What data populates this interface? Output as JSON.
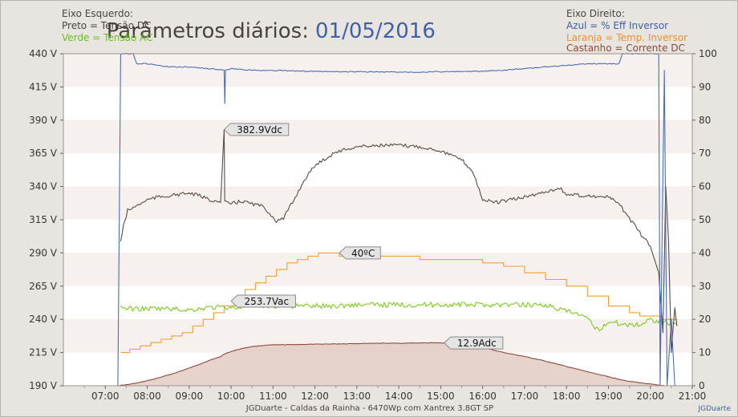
{
  "chart_data": {
    "type": "line",
    "title": {
      "prefix": "Parâmetros diários:",
      "date": "01/05/2016"
    },
    "legend_left": {
      "heading": "Eixo Esquerdo:",
      "black": "Preto = Tensão DC",
      "green": "Verde = Tensão AC"
    },
    "legend_right": {
      "heading": "Eixo Direito:",
      "blue": "Azul = % Eff Inversor",
      "orange": "Laranja = Temp. Inversor",
      "brown": "Castanho = Corrente DC"
    },
    "left_axis": {
      "range": [
        190,
        440
      ],
      "ticks": [
        "440 V",
        "415 V",
        "390 V",
        "365 V",
        "340 V",
        "315 V",
        "290 V",
        "265 V",
        "240 V",
        "215 V",
        "190 V"
      ]
    },
    "right_axis": {
      "range": [
        0,
        100
      ],
      "ticks": [
        "100",
        "90",
        "80",
        "70",
        "60",
        "50",
        "40",
        "30",
        "20",
        "10",
        "0"
      ]
    },
    "x_axis": {
      "range": [
        "06:00",
        "21:00"
      ],
      "ticks": [
        "07:00",
        "08:00",
        "09:00",
        "10:00",
        "11:00",
        "12:00",
        "13:00",
        "14:00",
        "15:00",
        "16:00",
        "17:00",
        "18:00",
        "19:00",
        "20:00",
        "21:00"
      ]
    },
    "grid": "horizontal bands",
    "annotations": [
      {
        "text": "382.9Vdc",
        "time": "09:50",
        "value": 382.9,
        "axis": "left"
      },
      {
        "text": "40ºC",
        "time": "12:35",
        "value": 40,
        "axis": "right"
      },
      {
        "text": "253.7Vac",
        "time": "10:00",
        "value": 253.7,
        "axis": "left"
      },
      {
        "text": "12.9Adc",
        "time": "15:05",
        "value": 12.9,
        "axis": "right"
      }
    ],
    "series": [
      {
        "name": "Tensão DC",
        "axis": "left",
        "color": "#5a4a42",
        "points": [
          [
            "07:22",
            299
          ],
          [
            "07:26",
            310
          ],
          [
            "07:32",
            322
          ],
          [
            "07:40",
            324
          ],
          [
            "07:50",
            327
          ],
          [
            "08:00",
            330
          ],
          [
            "08:15",
            332
          ],
          [
            "08:30",
            333
          ],
          [
            "08:45",
            334
          ],
          [
            "09:00",
            335
          ],
          [
            "09:15",
            333
          ],
          [
            "09:30",
            330
          ],
          [
            "09:45",
            328
          ],
          [
            "09:50",
            382.9
          ],
          [
            "09:51",
            328
          ],
          [
            "10:00",
            327
          ],
          [
            "10:15",
            329
          ],
          [
            "10:30",
            327
          ],
          [
            "10:45",
            325
          ],
          [
            "10:55",
            320
          ],
          [
            "11:05",
            314
          ],
          [
            "11:15",
            316
          ],
          [
            "11:30",
            330
          ],
          [
            "11:45",
            345
          ],
          [
            "12:00",
            356
          ],
          [
            "12:30",
            366
          ],
          [
            "13:00",
            370
          ],
          [
            "13:30",
            371
          ],
          [
            "14:00",
            371
          ],
          [
            "14:30",
            370
          ],
          [
            "15:00",
            367
          ],
          [
            "15:30",
            360
          ],
          [
            "15:45",
            352
          ],
          [
            "15:55",
            338
          ],
          [
            "16:00",
            330
          ],
          [
            "16:20",
            328
          ],
          [
            "16:40",
            330
          ],
          [
            "17:00",
            332
          ],
          [
            "17:30",
            336
          ],
          [
            "17:50",
            339
          ],
          [
            "18:00",
            334
          ],
          [
            "18:30",
            333
          ],
          [
            "19:00",
            332
          ],
          [
            "19:15",
            327
          ],
          [
            "19:30",
            316
          ],
          [
            "19:45",
            305
          ],
          [
            "20:00",
            295
          ],
          [
            "20:12",
            275
          ],
          [
            "20:18",
            230
          ],
          [
            "20:22",
            340
          ],
          [
            "20:26",
            300
          ],
          [
            "20:30",
            215
          ],
          [
            "20:35",
            250
          ],
          [
            "20:38",
            235
          ]
        ]
      },
      {
        "name": "Tensão AC",
        "axis": "left",
        "color": "#7dc820",
        "points": [
          [
            "07:22",
            250
          ],
          [
            "07:30",
            248
          ],
          [
            "08:00",
            248
          ],
          [
            "08:30",
            248
          ],
          [
            "09:00",
            247
          ],
          [
            "09:30",
            249
          ],
          [
            "10:00",
            249
          ],
          [
            "10:30",
            250
          ],
          [
            "11:00",
            250
          ],
          [
            "11:30",
            250
          ],
          [
            "12:00",
            250
          ],
          [
            "12:30",
            250
          ],
          [
            "13:00",
            251
          ],
          [
            "13:30",
            251
          ],
          [
            "14:00",
            251
          ],
          [
            "14:30",
            251
          ],
          [
            "15:00",
            251
          ],
          [
            "15:30",
            251
          ],
          [
            "16:00",
            251
          ],
          [
            "16:30",
            251
          ],
          [
            "17:00",
            251
          ],
          [
            "17:30",
            251
          ],
          [
            "17:45",
            248
          ],
          [
            "18:00",
            246
          ],
          [
            "18:15",
            244
          ],
          [
            "18:30",
            240
          ],
          [
            "18:45",
            232
          ],
          [
            "19:00",
            238
          ],
          [
            "19:30",
            236
          ],
          [
            "19:45",
            236
          ],
          [
            "20:00",
            240
          ],
          [
            "20:20",
            238
          ],
          [
            "20:38",
            236
          ]
        ]
      },
      {
        "name": "% Eff Inversor",
        "axis": "right",
        "color": "#4a6db5",
        "points": [
          [
            "07:18",
            0
          ],
          [
            "07:22",
            100
          ],
          [
            "07:40",
            100
          ],
          [
            "07:45",
            97
          ],
          [
            "08:00",
            97
          ],
          [
            "08:30",
            96
          ],
          [
            "09:00",
            96
          ],
          [
            "09:30",
            95.5
          ],
          [
            "09:50",
            95
          ],
          [
            "09:51",
            85
          ],
          [
            "09:52",
            95
          ],
          [
            "10:00",
            95.5
          ],
          [
            "10:30",
            95
          ],
          [
            "11:00",
            95
          ],
          [
            "11:30",
            94.8
          ],
          [
            "12:00",
            94.7
          ],
          [
            "12:30",
            94.6
          ],
          [
            "13:00",
            94.6
          ],
          [
            "13:30",
            94.5
          ],
          [
            "14:00",
            94.5
          ],
          [
            "14:30",
            94.5
          ],
          [
            "15:00",
            94.6
          ],
          [
            "15:30",
            94.6
          ],
          [
            "16:00",
            94.7
          ],
          [
            "16:30",
            95
          ],
          [
            "17:00",
            95.5
          ],
          [
            "17:30",
            96
          ],
          [
            "18:00",
            96.5
          ],
          [
            "18:30",
            97
          ],
          [
            "19:00",
            97
          ],
          [
            "19:15",
            97
          ],
          [
            "19:20",
            100
          ],
          [
            "20:00",
            100
          ],
          [
            "20:12",
            100
          ],
          [
            "20:14",
            0
          ],
          [
            "20:20",
            95
          ],
          [
            "20:24",
            0
          ],
          [
            "20:30",
            20
          ],
          [
            "20:35",
            0
          ]
        ]
      },
      {
        "name": "Temp. Inversor",
        "axis": "right",
        "color": "#f0a030",
        "points": [
          [
            "07:22",
            10
          ],
          [
            "07:35",
            11
          ],
          [
            "07:50",
            12
          ],
          [
            "08:05",
            13
          ],
          [
            "08:20",
            14
          ],
          [
            "08:35",
            15
          ],
          [
            "08:50",
            16
          ],
          [
            "09:05",
            18
          ],
          [
            "09:20",
            20
          ],
          [
            "09:35",
            22
          ],
          [
            "09:50",
            24
          ],
          [
            "10:05",
            26
          ],
          [
            "10:20",
            29
          ],
          [
            "10:35",
            31
          ],
          [
            "10:50",
            33
          ],
          [
            "11:05",
            35
          ],
          [
            "11:20",
            37
          ],
          [
            "11:35",
            38
          ],
          [
            "11:50",
            39
          ],
          [
            "12:05",
            40
          ],
          [
            "12:15",
            40
          ],
          [
            "12:35",
            39
          ],
          [
            "13:00",
            39
          ],
          [
            "13:30",
            39
          ],
          [
            "14:00",
            39
          ],
          [
            "14:30",
            38
          ],
          [
            "15:00",
            38
          ],
          [
            "15:30",
            38
          ],
          [
            "16:00",
            37
          ],
          [
            "16:30",
            36
          ],
          [
            "17:00",
            34
          ],
          [
            "17:30",
            32
          ],
          [
            "18:00",
            30
          ],
          [
            "18:30",
            27
          ],
          [
            "19:00",
            24
          ],
          [
            "19:30",
            22
          ],
          [
            "19:45",
            21
          ],
          [
            "20:00",
            21
          ],
          [
            "20:15",
            20
          ],
          [
            "20:38",
            20
          ]
        ]
      },
      {
        "name": "Corrente DC",
        "axis": "right",
        "color": "#8a4a38",
        "points": [
          [
            "07:18",
            0
          ],
          [
            "07:30",
            0.3
          ],
          [
            "07:45",
            0.8
          ],
          [
            "08:00",
            1.5
          ],
          [
            "08:15",
            2.3
          ],
          [
            "08:30",
            3.2
          ],
          [
            "08:45",
            4.2
          ],
          [
            "09:00",
            5.3
          ],
          [
            "09:15",
            6.5
          ],
          [
            "09:30",
            7.7
          ],
          [
            "09:45",
            8.8
          ],
          [
            "09:50",
            9.5
          ],
          [
            "10:00",
            10.3
          ],
          [
            "10:15",
            11.2
          ],
          [
            "10:30",
            11.8
          ],
          [
            "10:45",
            12.1
          ],
          [
            "11:00",
            12.3
          ],
          [
            "11:30",
            12.4
          ],
          [
            "12:00",
            12.5
          ],
          [
            "12:30",
            12.6
          ],
          [
            "13:00",
            12.7
          ],
          [
            "13:30",
            12.8
          ],
          [
            "14:00",
            12.8
          ],
          [
            "14:30",
            12.9
          ],
          [
            "15:00",
            12.9
          ],
          [
            "15:30",
            12.5
          ],
          [
            "16:00",
            11.5
          ],
          [
            "16:30",
            10.0
          ],
          [
            "17:00",
            8.8
          ],
          [
            "17:30",
            7.4
          ],
          [
            "18:00",
            5.8
          ],
          [
            "18:30",
            4.2
          ],
          [
            "19:00",
            2.7
          ],
          [
            "19:30",
            1.3
          ],
          [
            "20:00",
            0.5
          ],
          [
            "20:15",
            0.1
          ],
          [
            "20:20",
            0
          ]
        ]
      }
    ]
  },
  "footer": {
    "credit": "JGDuarte  -  Caldas da Rainha  -  6470Wp com Xantrex 3.8GT SP",
    "signature": "JGDuarte"
  },
  "colors": {
    "background": "#e8e4e0",
    "plot_band_a": "#f6f1ee",
    "plot_band_b": "#ffffff",
    "title_date": "#4060a8",
    "legend_green": "#66c020",
    "legend_blue": "#3a5fae",
    "legend_orange": "#f09030",
    "legend_brown": "#8a4a38"
  }
}
